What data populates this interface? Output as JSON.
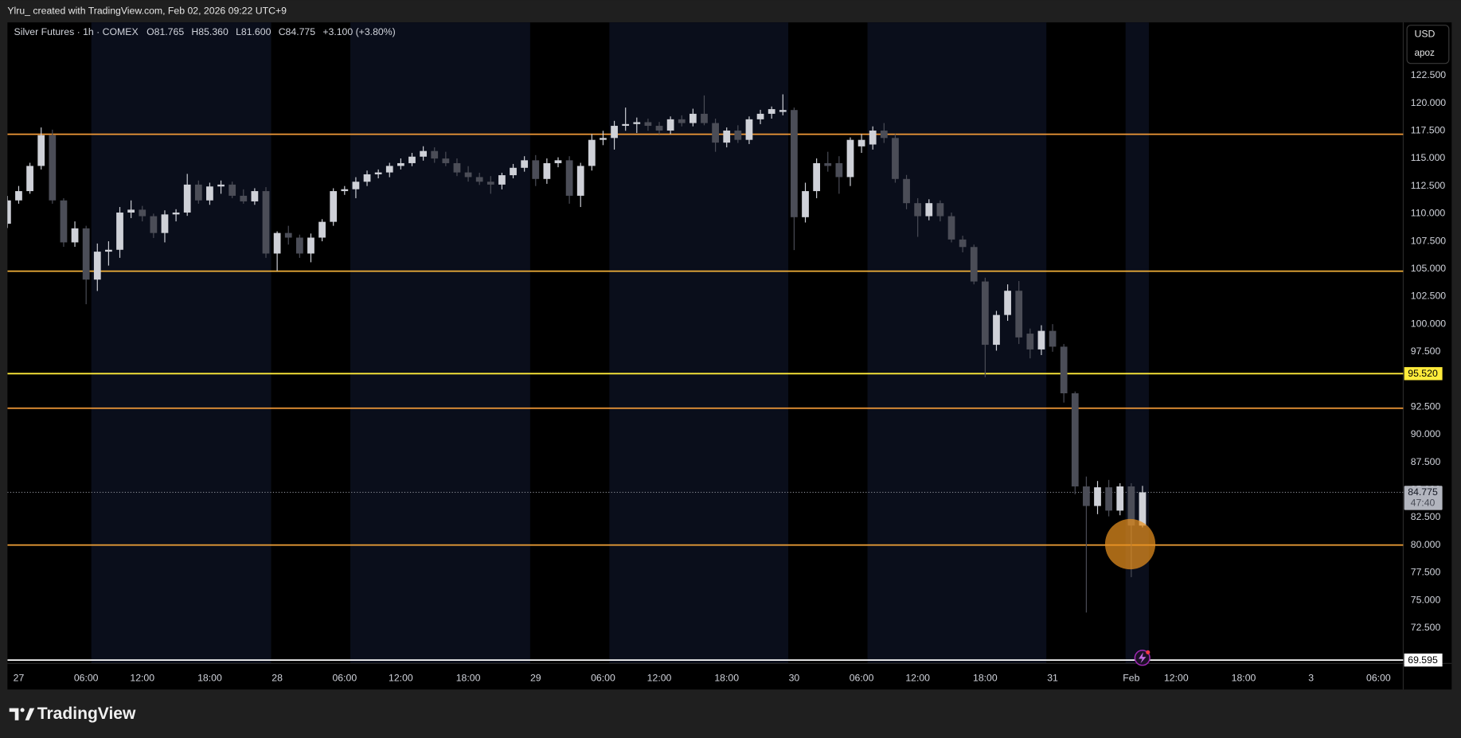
{
  "caption": "Ylru_ created with TradingView.com, Feb 02, 2026 09:22 UTC+9",
  "footer": "TradingView",
  "currency": "USD",
  "scale_mode": "apoz",
  "chart_data": {
    "type": "candlestick",
    "legend": {
      "symbol": "Silver Futures · 1h · COMEX",
      "open": "O81.765",
      "high": "H85.360",
      "low": "L81.600",
      "close": "C84.775",
      "change": "+3.100 (+3.80%)"
    },
    "up_color": "#cfd1d8",
    "down_color": "#4b4d57",
    "candles": {
      "open": [
        109.09,
        111.2,
        112.04,
        114.32,
        117.1,
        111.2,
        107.4,
        108.67,
        104.03,
        106.56,
        106.73,
        110.1,
        110.36,
        109.77,
        108.25,
        109.93,
        110.1,
        112.63,
        111.2,
        112.46,
        112.63,
        111.62,
        111.11,
        112.04,
        106.39,
        108.25,
        107.83,
        106.39,
        107.83,
        109.26,
        112.04,
        112.21,
        112.89,
        113.56,
        113.73,
        114.32,
        114.57,
        115.16,
        115.67,
        114.99,
        114.57,
        113.73,
        113.31,
        112.89,
        112.63,
        113.48,
        114.15,
        114.83,
        113.14,
        114.57,
        114.83,
        111.62,
        114.32,
        116.68,
        116.85,
        117.95,
        118.11,
        118.28,
        117.95,
        117.52,
        118.54,
        118.2,
        119.04,
        118.2,
        116.43,
        117.52,
        116.68,
        118.54,
        119.04,
        119.21,
        119.38,
        109.68,
        112.04,
        114.57,
        114.57,
        113.31,
        116.09,
        116.26,
        117.52,
        116.85,
        113.14,
        110.95,
        109.77,
        110.95,
        109.77,
        107.66,
        106.98,
        103.86,
        98.13,
        100.83,
        103.02,
        99.14,
        97.71,
        99.39,
        97.96,
        93.74,
        85.31,
        83.54,
        85.23,
        83.12,
        85.31,
        81.765
      ],
      "high": [
        111.6,
        112.5,
        114.6,
        117.8,
        117.6,
        111.4,
        109.3,
        108.9,
        107.3,
        107.5,
        110.6,
        111.2,
        110.7,
        110.0,
        110.3,
        110.4,
        113.6,
        113.0,
        112.8,
        113.0,
        112.9,
        112.2,
        112.3,
        112.4,
        108.4,
        108.9,
        108.1,
        108.2,
        109.5,
        112.3,
        112.5,
        113.3,
        113.9,
        114.0,
        114.6,
        115.0,
        115.5,
        116.1,
        116.0,
        115.6,
        115.0,
        114.3,
        113.7,
        113.4,
        113.7,
        114.5,
        115.2,
        115.3,
        115.0,
        115.1,
        115.2,
        114.6,
        117.2,
        117.5,
        118.4,
        119.6,
        118.7,
        118.6,
        118.3,
        118.8,
        118.9,
        119.5,
        120.7,
        118.6,
        117.8,
        118.0,
        118.8,
        119.4,
        119.7,
        120.8,
        119.6,
        112.8,
        115.0,
        115.6,
        115.2,
        116.9,
        117.2,
        117.9,
        118.2,
        117.2,
        113.5,
        111.4,
        111.3,
        111.2,
        110.1,
        108.0,
        107.2,
        104.2,
        101.2,
        103.6,
        103.9,
        99.6,
        99.9,
        100.0,
        98.2,
        93.9,
        86.2,
        85.8,
        85.9,
        85.6,
        85.6,
        85.36
      ],
      "low": [
        108.7,
        110.9,
        111.8,
        114.0,
        110.9,
        107.0,
        107.0,
        101.8,
        103.0,
        105.3,
        106.0,
        109.6,
        109.3,
        107.8,
        107.4,
        109.3,
        109.8,
        110.9,
        110.8,
        111.8,
        111.4,
        110.9,
        110.8,
        106.0,
        104.8,
        107.2,
        106.0,
        105.6,
        107.5,
        108.9,
        111.7,
        111.4,
        112.5,
        113.2,
        113.3,
        114.0,
        114.3,
        114.8,
        114.6,
        114.3,
        113.4,
        112.9,
        112.6,
        111.8,
        112.2,
        113.2,
        113.8,
        112.5,
        112.7,
        114.2,
        110.9,
        110.6,
        113.9,
        116.2,
        115.8,
        117.5,
        117.3,
        117.5,
        117.2,
        117.2,
        117.9,
        117.9,
        118.0,
        115.6,
        116.0,
        116.4,
        116.3,
        118.1,
        118.6,
        118.9,
        106.7,
        109.2,
        111.4,
        113.8,
        111.8,
        112.5,
        115.5,
        115.8,
        116.4,
        112.8,
        110.4,
        107.9,
        109.4,
        109.3,
        107.4,
        106.5,
        103.6,
        95.2,
        97.6,
        100.3,
        98.2,
        96.9,
        97.2,
        97.5,
        92.9,
        84.6,
        73.9,
        82.8,
        82.6,
        82.7,
        77.1,
        81.6
      ],
      "close": [
        111.2,
        112.04,
        114.32,
        117.1,
        111.2,
        107.4,
        108.67,
        104.03,
        106.56,
        106.73,
        110.1,
        110.36,
        109.77,
        108.25,
        109.93,
        110.1,
        112.63,
        111.2,
        112.46,
        112.63,
        111.62,
        111.11,
        112.04,
        106.39,
        108.25,
        107.83,
        106.39,
        107.83,
        109.26,
        112.04,
        112.21,
        112.89,
        113.56,
        113.73,
        114.32,
        114.57,
        115.16,
        115.67,
        114.99,
        114.57,
        113.73,
        113.31,
        112.89,
        112.63,
        113.48,
        114.15,
        114.83,
        113.14,
        114.57,
        114.83,
        111.62,
        114.32,
        116.68,
        116.85,
        117.95,
        118.11,
        118.28,
        117.95,
        117.52,
        118.54,
        118.2,
        119.04,
        118.2,
        116.43,
        117.52,
        116.68,
        118.54,
        119.04,
        119.46,
        119.38,
        109.68,
        112.04,
        114.57,
        114.32,
        113.31,
        116.68,
        116.68,
        117.52,
        116.85,
        113.14,
        110.95,
        109.77,
        110.95,
        109.77,
        107.66,
        106.98,
        103.86,
        98.13,
        100.83,
        103.02,
        98.8,
        97.71,
        99.39,
        97.96,
        93.74,
        85.31,
        83.54,
        85.23,
        83.12,
        85.31,
        81.77,
        84.775
      ]
    },
    "xlim": [
      0,
      124.2
    ],
    "xticks": [
      {
        "value": 1,
        "label": "27"
      },
      {
        "value": 7,
        "label": "06:00"
      },
      {
        "value": 12,
        "label": "12:00"
      },
      {
        "value": 18,
        "label": "18:00"
      },
      {
        "value": 24,
        "label": "28"
      },
      {
        "value": 30,
        "label": "06:00"
      },
      {
        "value": 35,
        "label": "12:00"
      },
      {
        "value": 41,
        "label": "18:00"
      },
      {
        "value": 47,
        "label": "29"
      },
      {
        "value": 53,
        "label": "06:00"
      },
      {
        "value": 58,
        "label": "12:00"
      },
      {
        "value": 64,
        "label": "18:00"
      },
      {
        "value": 70,
        "label": "30"
      },
      {
        "value": 76,
        "label": "06:00"
      },
      {
        "value": 81,
        "label": "12:00"
      },
      {
        "value": 87,
        "label": "18:00"
      },
      {
        "value": 93,
        "label": "31"
      },
      {
        "value": 100,
        "label": "Feb"
      },
      {
        "value": 104,
        "label": "12:00"
      },
      {
        "value": 110,
        "label": "18:00"
      },
      {
        "value": 116,
        "label": "3"
      },
      {
        "value": 122,
        "label": "06:00"
      }
    ],
    "ylim": [
      69.29,
      127.31
    ],
    "yticks": [
      {
        "value": 72.5,
        "label": "72.500"
      },
      {
        "value": 75,
        "label": "75.000"
      },
      {
        "value": 77.5,
        "label": "77.500"
      },
      {
        "value": 80,
        "label": "80.000"
      },
      {
        "value": 82.5,
        "label": "82.500"
      },
      {
        "value": 85,
        "label": "85.000"
      },
      {
        "value": 87.5,
        "label": "87.500"
      },
      {
        "value": 90,
        "label": "90.000"
      },
      {
        "value": 92.5,
        "label": "92.500"
      },
      {
        "value": 97.5,
        "label": "97.500"
      },
      {
        "value": 100,
        "label": "100.000"
      },
      {
        "value": 102.5,
        "label": "102.500"
      },
      {
        "value": 105,
        "label": "105.000"
      },
      {
        "value": 107.5,
        "label": "107.500"
      },
      {
        "value": 110,
        "label": "110.000"
      },
      {
        "value": 112.5,
        "label": "112.500"
      },
      {
        "value": 115,
        "label": "115.000"
      },
      {
        "value": 117.5,
        "label": "117.500"
      },
      {
        "value": 120,
        "label": "120.000"
      },
      {
        "value": 122.5,
        "label": "122.500"
      }
    ],
    "grid": false,
    "levels": [
      {
        "value": 117.19,
        "color": "#f29a38"
      },
      {
        "value": 104.79,
        "color": "#f2b13a"
      },
      {
        "value": 92.39,
        "color": "#f29a38"
      },
      {
        "value": 80.0,
        "color": "#f2a238"
      },
      {
        "value": 95.52,
        "label": "95.520",
        "color": "#ffeb3b"
      },
      {
        "value": 69.595,
        "label": "69.595",
        "color": "#ffffff"
      }
    ],
    "last_price": {
      "value": 84.775,
      "label": "84.775",
      "countdown": "47:40"
    }
  }
}
